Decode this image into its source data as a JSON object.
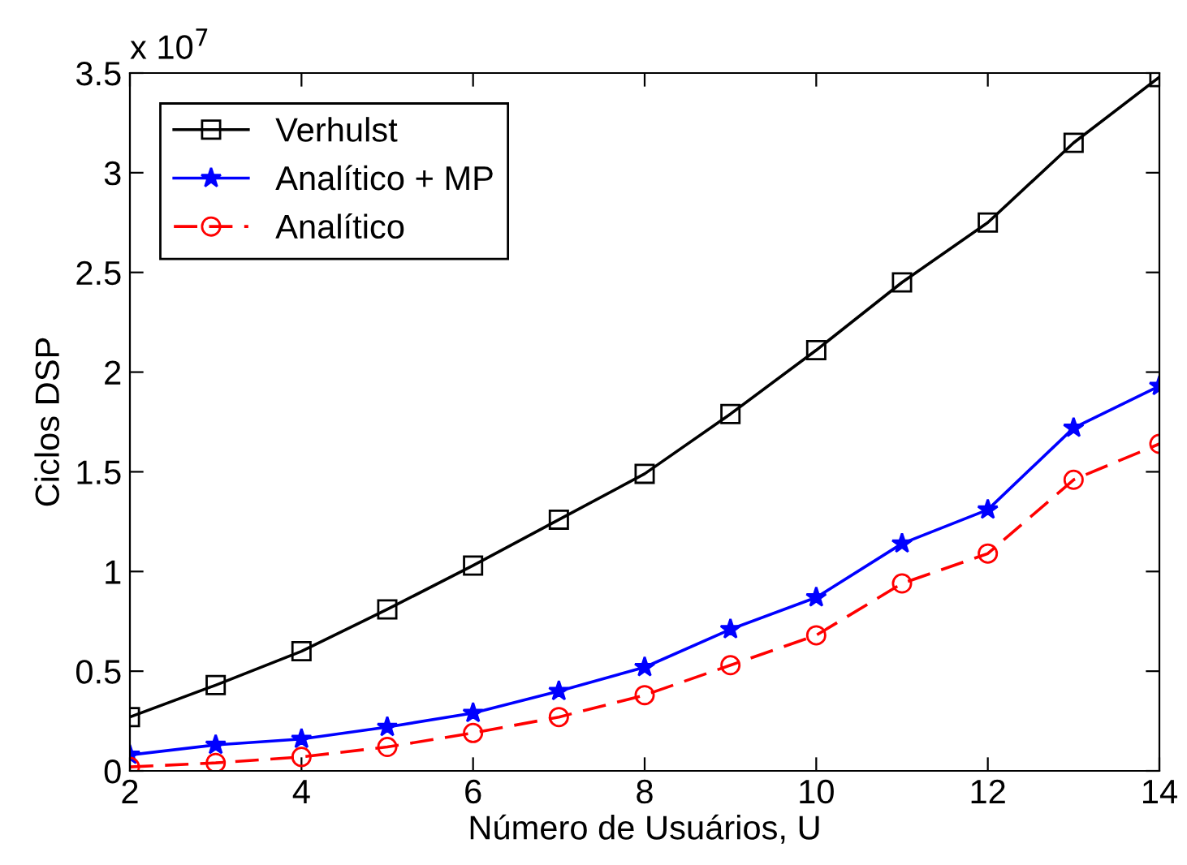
{
  "chart_data": {
    "type": "line",
    "xlabel": "Número de Usuários, U",
    "ylabel": "Ciclos DSP",
    "x": [
      2,
      3,
      4,
      5,
      6,
      7,
      8,
      9,
      10,
      11,
      12,
      13,
      14
    ],
    "series": [
      {
        "name": "Verhulst",
        "color": "#000000",
        "marker": "square",
        "line_style": "solid",
        "values": [
          0.27,
          0.43,
          0.6,
          0.81,
          1.03,
          1.26,
          1.49,
          1.79,
          2.11,
          2.45,
          2.75,
          3.15,
          3.48
        ]
      },
      {
        "name": "Analítico + MP",
        "color": "#0000ff",
        "marker": "star",
        "line_style": "solid",
        "values": [
          0.08,
          0.13,
          0.16,
          0.22,
          0.29,
          0.4,
          0.52,
          0.71,
          0.87,
          1.14,
          1.31,
          1.72,
          1.93
        ]
      },
      {
        "name": "Analítico",
        "color": "#ff0000",
        "marker": "circle",
        "line_style": "dashed",
        "values": [
          0.02,
          0.04,
          0.07,
          0.12,
          0.19,
          0.27,
          0.38,
          0.53,
          0.68,
          0.94,
          1.09,
          1.46,
          1.64
        ]
      }
    ],
    "xlim": [
      2,
      14
    ],
    "xticks": [
      2,
      4,
      6,
      8,
      10,
      12,
      14
    ],
    "ylim": [
      0,
      3.5
    ],
    "yticks": [
      0,
      0.5,
      1,
      1.5,
      2,
      2.5,
      3,
      3.5
    ],
    "annotations": [
      "x 10$^{7}$"
    ],
    "grid": false,
    "legend": "top left"
  }
}
